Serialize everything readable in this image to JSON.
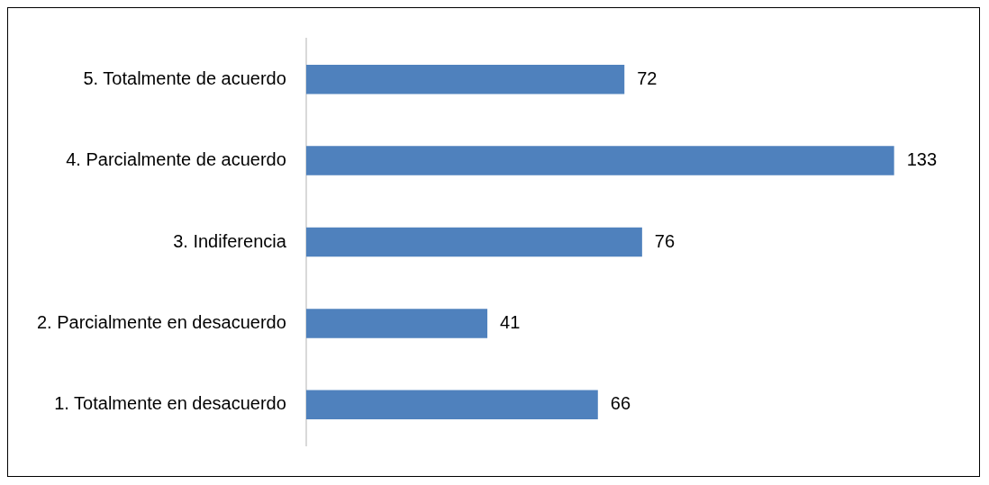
{
  "chart_data": {
    "type": "bar",
    "orientation": "horizontal",
    "categories": [
      "5. Totalmente de acuerdo",
      "4. Parcialmente de acuerdo",
      "3. Indiferencia",
      "2. Parcialmente en desacuerdo",
      "1. Totalmente en desacuerdo"
    ],
    "values": [
      72,
      133,
      76,
      41,
      66
    ],
    "color": "#4f81bd",
    "data_labels": true
  }
}
